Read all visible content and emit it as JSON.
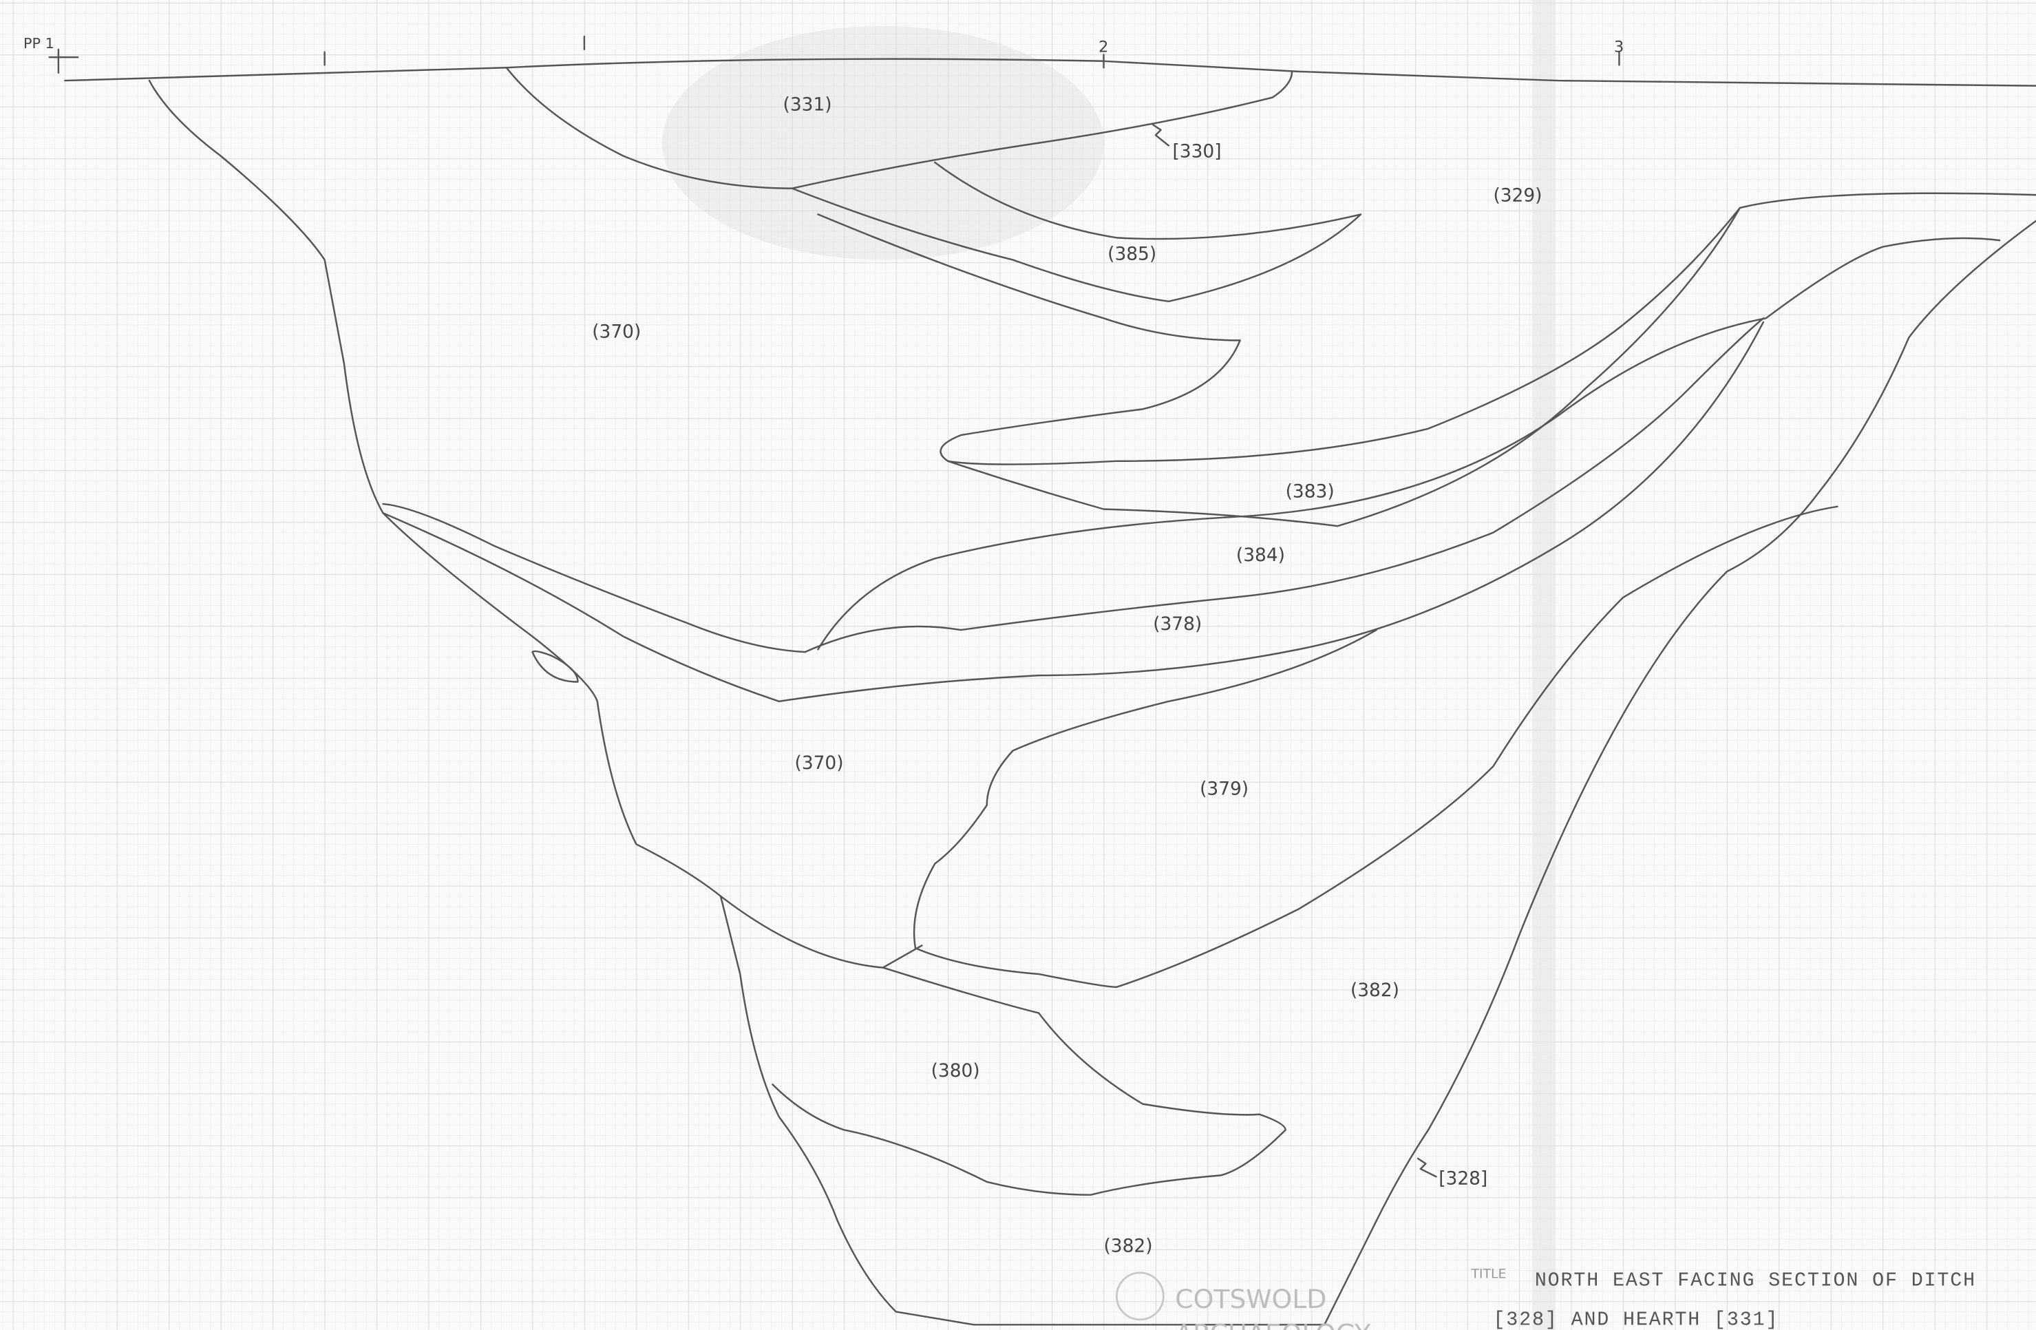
{
  "drawing": {
    "datum": "PP 1",
    "scale_marks": [
      "2",
      "3"
    ],
    "context_labels": [
      "(331)",
      "[330]",
      "(329)",
      "(385)",
      "(370)",
      "(383)",
      "(384)",
      "(378)",
      "(370)",
      "(379)",
      "(382)",
      "(380)",
      "[328]",
      "(382)"
    ],
    "title_caption": "TITLE",
    "title_lines": [
      "NORTH EAST FACING SECTION OF DITCH",
      "[328] AND HEARTH [331]"
    ],
    "logo": [
      "COTSWOLD",
      "ARCHAEOLOGY"
    ]
  }
}
